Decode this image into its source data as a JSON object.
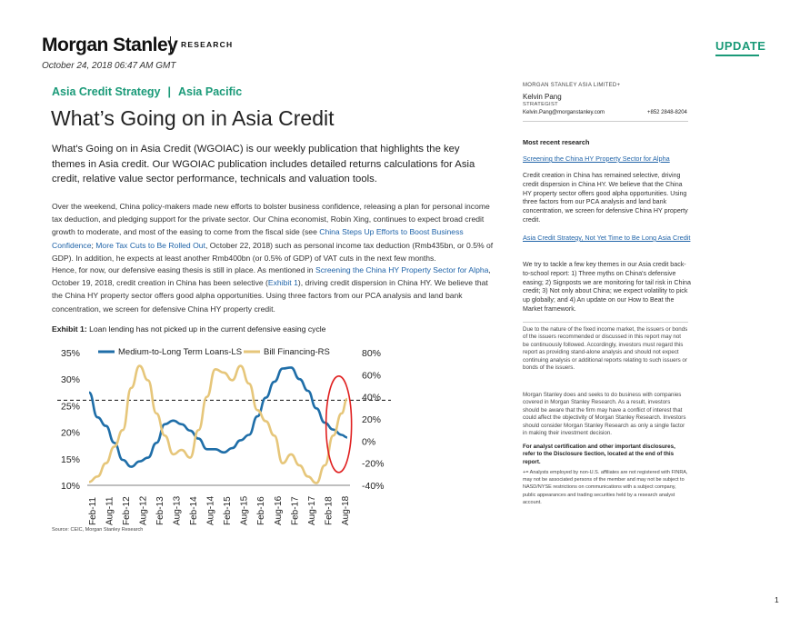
{
  "header": {
    "logo": "Morgan Stanley",
    "research": "RESEARCH",
    "badge": "UPDATE",
    "date": "October 24, 2018 06:47 AM GMT"
  },
  "main": {
    "series_name": "Asia Credit Strategy",
    "series_sep": "|",
    "region": "Asia Pacific",
    "title": "What’s Going on in Asia Credit",
    "lead": "What's Going on in Asia Credit (WGOIAC) is our weekly publication that highlights the key themes in Asia credit. Our WGOIAC publication includes detailed returns calculations for Asia credit, relative value sector performance, technicals and valuation tools.",
    "p1_a": "Over the weekend, China policy-makers made new efforts to bolster business confidence, releasing a plan for personal income tax deduction, and pledging support for the private sector. Our China economist, Robin Xing, continues to expect broad credit growth to moderate, and most of the easing to come from the fiscal side (see ",
    "p1_link1": "China Steps Up Efforts to Boost Business Confidence",
    "p1_b": "; ",
    "p1_link2": "More Tax Cuts to Be Rolled Out",
    "p1_c": ", October 22, 2018) such as personal income tax deduction (Rmb435bn, or 0.5% of GDP). In addition, he expects at least another Rmb400bn (or 0.5% of GDP) of VAT cuts in the next few months.",
    "p2_a": "Hence, for now, our defensive easing thesis is still in place. As mentioned in ",
    "p2_link1": "Screening the China HY Property Sector for Alpha",
    "p2_b": ", October 19, 2018, credit creation in China has been selective (",
    "p2_link2": "Exhibit 1",
    "p2_c": "), driving credit dispersion in China HY. We believe that the China HY property sector offers good alpha opportunities. Using three factors from our PCA analysis and land bank concentration, we screen for defensive China HY property credit.",
    "exhibit_label": "Exhibit 1:",
    "exhibit_title": "Loan lending has not picked up in the current defensive easing cycle",
    "source": "Source: CEIC, Morgan Stanley Research"
  },
  "sidebar": {
    "entity": "MORGAN STANLEY ASIA LIMITED+",
    "name": "Kelvin Pang",
    "role": "STRATEGIST",
    "email": "Kelvin.Pang@morganstanley.com",
    "phone": "+852 2848-8204",
    "recent_head": "Most recent research",
    "link1": "Screening the China HY Property Sector for Alpha",
    "text1": "Credit creation in China has remained selective, driving credit dispersion in China HY. We believe that the China HY property sector offers good alpha opportunities. Using three factors from our PCA analysis and land bank concentration, we screen for defensive China HY property credit.",
    "link2": "Asia Credit Strategy, Not Yet Time to Be Long Asia Credit",
    "text2": "We try to tackle a few key themes in our Asia credit back-to-school report: 1) Three myths on China's defensive easing; 2) Signposts we are monitoring for tail risk in China credit; 3) Not only about China; we expect volatility to pick up globally; and 4) An update on our How to Beat the Market framework.",
    "disc1": "Due to the nature of the fixed income market, the issuers or bonds of the issuers recommended or discussed in this report may not be continuously followed. Accordingly, investors must regard this report as providing stand-alone analysis and should not expect continuing analysis or additional reports relating to such issuers or bonds of the issuers.",
    "disc2": "Morgan Stanley does and seeks to do business with companies covered in Morgan Stanley Research. As a result, investors should be aware that the firm may have a conflict of interest that could affect the objectivity of Morgan Stanley Research. Investors should consider Morgan Stanley Research as only a single factor in making their investment decision.",
    "disc3": "For analyst certification and other important disclosures, refer to the Disclosure Section, located at the end of this report.",
    "disc4": "+= Analysts employed by non-U.S. affiliates are not registered with FINRA, may not be associated persons of the member and may not be subject to NASD/NYSE restrictions on communications with a subject company, public appearances and trading securities held by a research analyst account."
  },
  "page_number": "1",
  "colors": {
    "accent": "#1a9a78",
    "link": "#1f63a8",
    "series_blue": "#1f6ea8",
    "series_gold": "#e6c67a",
    "highlight": "#e02020"
  },
  "chart_data": {
    "type": "line",
    "legend_placement": "top",
    "x_ticks": [
      "Feb-11",
      "Aug-11",
      "Feb-12",
      "Aug-12",
      "Feb-13",
      "Aug-13",
      "Feb-14",
      "Aug-14",
      "Feb-15",
      "Aug-15",
      "Feb-16",
      "Aug-16",
      "Feb-17",
      "Aug-17",
      "Feb-18",
      "Aug-18"
    ],
    "y_left": {
      "ticks": [
        "35%",
        "30%",
        "25%",
        "20%",
        "15%",
        "10%"
      ],
      "range": [
        10,
        35
      ]
    },
    "y_right": {
      "ticks": [
        "80%",
        "60%",
        "40%",
        "20%",
        "0%",
        "-20%",
        "-40%"
      ],
      "range": [
        -40,
        80
      ]
    },
    "reference_line_right": 37,
    "series": [
      {
        "name": "Medium-to-Long Term Loans-LS",
        "axis": "left",
        "x": [
          "Jan-11",
          "Apr-11",
          "Jul-11",
          "Oct-11",
          "Jan-12",
          "Apr-12",
          "Jul-12",
          "Oct-12",
          "Jan-13",
          "Apr-13",
          "Jul-13",
          "Oct-13",
          "Jan-14",
          "Apr-14",
          "Jul-14",
          "Oct-14",
          "Jan-15",
          "Apr-15",
          "Jul-15",
          "Oct-15",
          "Jan-16",
          "Apr-16",
          "Jul-16",
          "Oct-16",
          "Jan-17",
          "Apr-17",
          "Jul-17",
          "Oct-17",
          "Jan-18",
          "Apr-18",
          "Jul-18",
          "Sep-18"
        ],
        "values": [
          27.5,
          22.8,
          21.2,
          18.0,
          14.8,
          13.5,
          14.5,
          15.2,
          18.0,
          21.5,
          22.2,
          21.5,
          20.3,
          18.8,
          16.8,
          16.8,
          16.2,
          17.0,
          18.5,
          19.5,
          23.0,
          26.5,
          29.5,
          32.0,
          32.2,
          30.0,
          27.8,
          24.5,
          21.8,
          20.5,
          19.5,
          19.0
        ]
      },
      {
        "name": "Bill Financing-RS",
        "axis": "right",
        "x": [
          "Jan-11",
          "Apr-11",
          "Jul-11",
          "Oct-11",
          "Jan-12",
          "Apr-12",
          "Jul-12",
          "Oct-12",
          "Jan-13",
          "Apr-13",
          "Jul-13",
          "Oct-13",
          "Jan-14",
          "Apr-14",
          "Jul-14",
          "Oct-14",
          "Jan-15",
          "Apr-15",
          "Jul-15",
          "Oct-15",
          "Jan-16",
          "Apr-16",
          "Jul-16",
          "Oct-16",
          "Jan-17",
          "Apr-17",
          "Jul-17",
          "Oct-17",
          "Jan-18",
          "Apr-18",
          "Jul-18",
          "Sep-18"
        ],
        "values": [
          -37,
          -32,
          -20,
          -5,
          10,
          48,
          68,
          55,
          25,
          5,
          -12,
          -8,
          -15,
          10,
          40,
          65,
          62,
          55,
          68,
          52,
          28,
          18,
          5,
          -20,
          -12,
          -22,
          -32,
          -38,
          -22,
          5,
          25,
          38
        ]
      }
    ]
  }
}
